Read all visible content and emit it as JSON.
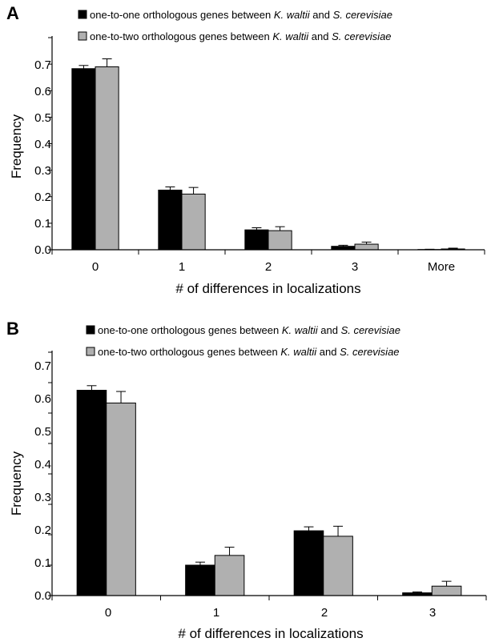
{
  "colors": {
    "series1": "#000000",
    "series2": "#b0b0b0"
  },
  "chart_data": [
    {
      "type": "bar",
      "panel_label": "A",
      "categories": [
        "0",
        "1",
        "2",
        "3",
        "More"
      ],
      "series": [
        {
          "name": "one-to-one orthologous genes between K. waltii and S. cerevisiae",
          "legend": {
            "a": "one-to-one orthologous genes between ",
            "sp1": "K. waltii",
            "b": " and ",
            "sp2": "S. cerevisiae"
          },
          "values": [
            0.683,
            0.225,
            0.075,
            0.013,
            0.001
          ],
          "errors": [
            0.012,
            0.012,
            0.008,
            0.004,
            0.001
          ],
          "color": "#000000"
        },
        {
          "name": "one-to-two orthologous genes between K. waltii and S. cerevisiae",
          "legend": {
            "a": "one-to-two orthologous genes between ",
            "sp1": "K. waltii",
            "b": " and ",
            "sp2": "S. cerevisiae"
          },
          "values": [
            0.69,
            0.21,
            0.072,
            0.021,
            0.003
          ],
          "errors": [
            0.03,
            0.025,
            0.015,
            0.008,
            0.003
          ],
          "color": "#b0b0b0"
        }
      ],
      "xlabel": "# of differences in localizations",
      "ylabel": "Frequency",
      "ylim": [
        0,
        0.8
      ],
      "yticks": [
        "0.0",
        "0.1",
        "0.2",
        "0.3",
        "0.4",
        "0.5",
        "0.6",
        "0.7"
      ],
      "grid": false,
      "legend_position": "top-left"
    },
    {
      "type": "bar",
      "panel_label": "B",
      "categories": [
        "0",
        "1",
        "2",
        "3"
      ],
      "series": [
        {
          "name": "one-to-one orthologous genes between K. waltii and S. cerevisiae",
          "legend": {
            "a": "one-to-one orthologous genes between ",
            "sp1": "K. waltii",
            "b": " and ",
            "sp2": "S. cerevisiae"
          },
          "values": [
            0.675,
            0.1,
            0.213,
            0.009
          ],
          "errors": [
            0.015,
            0.01,
            0.013,
            0.003
          ],
          "color": "#000000"
        },
        {
          "name": "one-to-two orthologous genes between K. waltii and S. cerevisiae",
          "legend": {
            "a": "one-to-two orthologous genes between ",
            "sp1": "K. waltii",
            "b": " and ",
            "sp2": "S. cerevisiae"
          },
          "values": [
            0.633,
            0.132,
            0.195,
            0.031
          ],
          "errors": [
            0.038,
            0.027,
            0.033,
            0.016
          ],
          "color": "#b0b0b0"
        }
      ],
      "xlabel": "# of differences in localizations",
      "ylabel": "Frequency",
      "ylim": [
        0,
        0.8
      ],
      "yticks": [
        "0.0",
        "0.1",
        "0.2",
        "0.3",
        "0.4",
        "0.5",
        "0.6",
        "0.7"
      ],
      "grid": false,
      "legend_position": "top-left"
    }
  ]
}
